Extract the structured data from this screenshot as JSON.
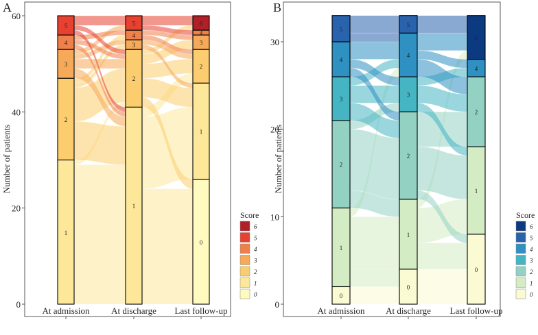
{
  "chart_data": [
    {
      "type": "alluvial",
      "panel_label": "A",
      "ylabel": "Number of patients",
      "ylim": [
        0,
        62
      ],
      "yticks": [
        0,
        20,
        40,
        60
      ],
      "categories": [
        "At admission",
        "At discharge",
        "Last follow-up"
      ],
      "legend_title": "Score",
      "legend_scores": [
        "6",
        "5",
        "4",
        "3",
        "2",
        "1",
        "0"
      ],
      "colors": {
        "0": "#fffbc0",
        "1": "#fde89a",
        "2": "#fbcd6e",
        "3": "#f6a958",
        "4": "#f0804a",
        "5": "#e8412f",
        "6": "#b11f27"
      },
      "stacks": [
        {
          "stage": "At admission",
          "segments": [
            {
              "score": "1",
              "value": 30
            },
            {
              "score": "2",
              "value": 17
            },
            {
              "score": "3",
              "value": 6
            },
            {
              "score": "4",
              "value": 3
            },
            {
              "score": "5",
              "value": 4
            }
          ]
        },
        {
          "stage": "At discharge",
          "segments": [
            {
              "score": "1",
              "value": 41
            },
            {
              "score": "2",
              "value": 12
            },
            {
              "score": "3",
              "value": 2
            },
            {
              "score": "4",
              "value": 2
            },
            {
              "score": "5",
              "value": 3
            }
          ]
        },
        {
          "stage": "Last follow-up",
          "segments": [
            {
              "score": "0",
              "value": 26
            },
            {
              "score": "1",
              "value": 20
            },
            {
              "score": "2",
              "value": 7
            },
            {
              "score": "3",
              "value": 3
            },
            {
              "score": "4",
              "value": 1
            },
            {
              "score": "6",
              "value": 3
            }
          ]
        }
      ],
      "flows": [
        [
          {
            "from": "1",
            "to": "1",
            "value": 29
          },
          {
            "from": "1",
            "to": "2",
            "value": 1
          },
          {
            "from": "2",
            "to": "1",
            "value": 8
          },
          {
            "from": "2",
            "to": "2",
            "value": 7
          },
          {
            "from": "2",
            "to": "3",
            "value": 1
          },
          {
            "from": "2",
            "to": "4",
            "value": 1
          },
          {
            "from": "3",
            "to": "1",
            "value": 2
          },
          {
            "from": "3",
            "to": "2",
            "value": 2
          },
          {
            "from": "3",
            "to": "3",
            "value": 1
          },
          {
            "from": "3",
            "to": "5",
            "value": 1
          },
          {
            "from": "4",
            "to": "1",
            "value": 1
          },
          {
            "from": "4",
            "to": "2",
            "value": 1
          },
          {
            "from": "4",
            "to": "4",
            "value": 1
          },
          {
            "from": "5",
            "to": "1",
            "value": 1
          },
          {
            "from": "5",
            "to": "2",
            "value": 1
          },
          {
            "from": "5",
            "to": "5",
            "value": 2
          }
        ],
        [
          {
            "from": "1",
            "to": "0",
            "value": 24
          },
          {
            "from": "1",
            "to": "1",
            "value": 15
          },
          {
            "from": "1",
            "to": "2",
            "value": 2
          },
          {
            "from": "2",
            "to": "0",
            "value": 2
          },
          {
            "from": "2",
            "to": "1",
            "value": 4
          },
          {
            "from": "2",
            "to": "2",
            "value": 3
          },
          {
            "from": "2",
            "to": "3",
            "value": 2
          },
          {
            "from": "2",
            "to": "6",
            "value": 1
          },
          {
            "from": "3",
            "to": "1",
            "value": 1
          },
          {
            "from": "3",
            "to": "2",
            "value": 1
          },
          {
            "from": "4",
            "to": "2",
            "value": 1
          },
          {
            "from": "4",
            "to": "3",
            "value": 1
          },
          {
            "from": "5",
            "to": "4",
            "value": 1
          },
          {
            "from": "5",
            "to": "6",
            "value": 2
          }
        ]
      ]
    },
    {
      "type": "alluvial",
      "panel_label": "B",
      "ylabel": "Number of patients",
      "ylim": [
        0,
        34.5
      ],
      "yticks": [
        0,
        10,
        20,
        30
      ],
      "categories": [
        "At admission",
        "At discharge",
        "Last follow-up"
      ],
      "legend_title": "Score",
      "legend_scores": [
        "6",
        "5",
        "4",
        "3",
        "2",
        "1",
        "0"
      ],
      "colors": {
        "0": "#fbfbd3",
        "1": "#d4ecc3",
        "2": "#93d1c2",
        "3": "#45b5c3",
        "4": "#2f90c2",
        "5": "#2a63ad",
        "6": "#0c3a81"
      },
      "stacks": [
        {
          "stage": "At admission",
          "segments": [
            {
              "score": "0",
              "value": 2
            },
            {
              "score": "1",
              "value": 9
            },
            {
              "score": "2",
              "value": 10
            },
            {
              "score": "3",
              "value": 5
            },
            {
              "score": "4",
              "value": 4
            },
            {
              "score": "5",
              "value": 3
            }
          ]
        },
        {
          "stage": "At discharge",
          "segments": [
            {
              "score": "0",
              "value": 4
            },
            {
              "score": "1",
              "value": 8
            },
            {
              "score": "2",
              "value": 10
            },
            {
              "score": "3",
              "value": 4
            },
            {
              "score": "4",
              "value": 5
            },
            {
              "score": "5",
              "value": 2
            }
          ]
        },
        {
          "stage": "Last follow-up",
          "segments": [
            {
              "score": "0",
              "value": 8
            },
            {
              "score": "1",
              "value": 10
            },
            {
              "score": "2",
              "value": 8
            },
            {
              "score": "4",
              "value": 2
            },
            {
              "score": "6",
              "value": 5
            }
          ]
        }
      ],
      "flows": [
        [
          {
            "from": "0",
            "to": "0",
            "value": 2
          },
          {
            "from": "1",
            "to": "0",
            "value": 2
          },
          {
            "from": "1",
            "to": "1",
            "value": 6
          },
          {
            "from": "1",
            "to": "4",
            "value": 1
          },
          {
            "from": "2",
            "to": "1",
            "value": 2
          },
          {
            "from": "2",
            "to": "2",
            "value": 7
          },
          {
            "from": "2",
            "to": "3",
            "value": 1
          },
          {
            "from": "3",
            "to": "2",
            "value": 2
          },
          {
            "from": "3",
            "to": "3",
            "value": 2
          },
          {
            "from": "3",
            "to": "4",
            "value": 1
          },
          {
            "from": "4",
            "to": "2",
            "value": 1
          },
          {
            "from": "4",
            "to": "3",
            "value": 1
          },
          {
            "from": "4",
            "to": "4",
            "value": 2
          },
          {
            "from": "5",
            "to": "4",
            "value": 1
          },
          {
            "from": "5",
            "to": "5",
            "value": 2
          }
        ],
        [
          {
            "from": "0",
            "to": "0",
            "value": 4
          },
          {
            "from": "1",
            "to": "0",
            "value": 3
          },
          {
            "from": "1",
            "to": "1",
            "value": 4
          },
          {
            "from": "1",
            "to": "6",
            "value": 1
          },
          {
            "from": "2",
            "to": "0",
            "value": 1
          },
          {
            "from": "2",
            "to": "1",
            "value": 5
          },
          {
            "from": "2",
            "to": "2",
            "value": 4
          },
          {
            "from": "3",
            "to": "1",
            "value": 1
          },
          {
            "from": "3",
            "to": "2",
            "value": 2
          },
          {
            "from": "3",
            "to": "4",
            "value": 1
          },
          {
            "from": "4",
            "to": "2",
            "value": 2
          },
          {
            "from": "4",
            "to": "4",
            "value": 1
          },
          {
            "from": "4",
            "to": "6",
            "value": 2
          },
          {
            "from": "5",
            "to": "6",
            "value": 2
          }
        ]
      ]
    }
  ]
}
